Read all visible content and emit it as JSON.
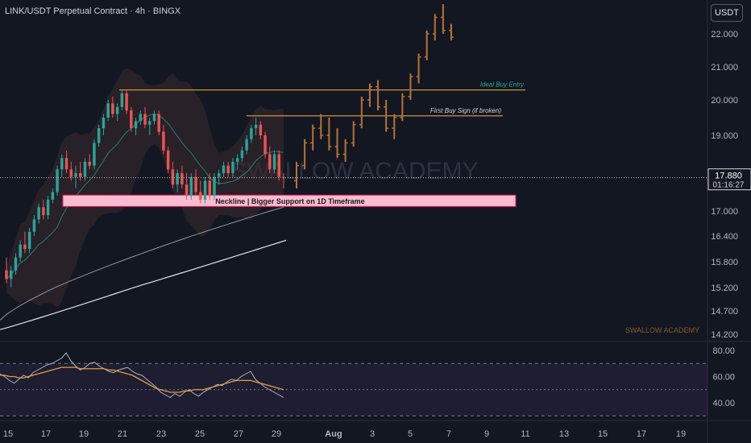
{
  "header": {
    "title": "LINK/USDT Perpetual Contract · 4h · BINGX",
    "currency_button": "USDT"
  },
  "price_tag": {
    "price": "17.880",
    "countdown": "01:16:27"
  },
  "watermarks": {
    "center": "SWALLOW ACADEMY",
    "corner": "SWALLOW ACADEMY"
  },
  "colors": {
    "background": "#131722",
    "up": "#26a69a",
    "down": "#ef5350",
    "projection": "#b87333",
    "level_line": "#e0a040",
    "zone_fill": "#f8bbd0",
    "rsi": "#b2b5be",
    "rsi_ma": "#e0a040"
  },
  "chart_data": [
    {
      "type": "candlestick",
      "title": "LINK/USDT Perpetual Contract · 4h · BINGX",
      "timeframe": "4h",
      "y_ticks": [
        "22.000",
        "21.000",
        "20.000",
        "19.000",
        "17.000",
        "16.400",
        "15.800",
        "15.200",
        "14.700",
        "14.200"
      ],
      "x_ticks": [
        "15",
        "17",
        "19",
        "21",
        "23",
        "25",
        "27",
        "29",
        "Aug",
        "3",
        "5",
        "7",
        "9",
        "11",
        "13",
        "15",
        "17",
        "19"
      ],
      "ylim": [
        14.2,
        22.0
      ],
      "last_price": 17.88,
      "candles": [
        {
          "o": 15.6,
          "h": 15.9,
          "l": 15.3,
          "c": 15.4
        },
        {
          "o": 15.4,
          "h": 15.7,
          "l": 15.2,
          "c": 15.6
        },
        {
          "o": 15.6,
          "h": 16.0,
          "l": 15.5,
          "c": 15.9
        },
        {
          "o": 15.9,
          "h": 16.3,
          "l": 15.8,
          "c": 16.2
        },
        {
          "o": 16.2,
          "h": 16.5,
          "l": 16.0,
          "c": 16.1
        },
        {
          "o": 16.1,
          "h": 16.6,
          "l": 16.0,
          "c": 16.5
        },
        {
          "o": 16.5,
          "h": 16.9,
          "l": 16.4,
          "c": 16.8
        },
        {
          "o": 16.8,
          "h": 17.2,
          "l": 16.7,
          "c": 17.1
        },
        {
          "o": 17.1,
          "h": 17.3,
          "l": 16.8,
          "c": 16.9
        },
        {
          "o": 16.9,
          "h": 17.4,
          "l": 16.8,
          "c": 17.3
        },
        {
          "o": 17.3,
          "h": 17.6,
          "l": 17.2,
          "c": 17.5
        },
        {
          "o": 17.5,
          "h": 18.2,
          "l": 17.4,
          "c": 18.1
        },
        {
          "o": 18.1,
          "h": 18.5,
          "l": 17.9,
          "c": 18.4
        },
        {
          "o": 18.4,
          "h": 18.6,
          "l": 18.0,
          "c": 18.1
        },
        {
          "o": 18.1,
          "h": 18.3,
          "l": 17.8,
          "c": 17.9
        },
        {
          "o": 17.9,
          "h": 18.2,
          "l": 17.6,
          "c": 18.0
        },
        {
          "o": 18.0,
          "h": 18.3,
          "l": 17.8,
          "c": 17.9
        },
        {
          "o": 17.9,
          "h": 18.4,
          "l": 17.8,
          "c": 18.3
        },
        {
          "o": 18.3,
          "h": 18.5,
          "l": 18.1,
          "c": 18.2
        },
        {
          "o": 18.2,
          "h": 18.9,
          "l": 18.1,
          "c": 18.8
        },
        {
          "o": 18.8,
          "h": 19.3,
          "l": 18.7,
          "c": 19.2
        },
        {
          "o": 19.2,
          "h": 19.6,
          "l": 19.0,
          "c": 19.5
        },
        {
          "o": 19.5,
          "h": 20.0,
          "l": 19.4,
          "c": 19.9
        },
        {
          "o": 19.9,
          "h": 20.1,
          "l": 19.5,
          "c": 19.6
        },
        {
          "o": 19.6,
          "h": 19.9,
          "l": 19.4,
          "c": 19.8
        },
        {
          "o": 19.8,
          "h": 20.3,
          "l": 19.7,
          "c": 20.2
        },
        {
          "o": 20.2,
          "h": 20.3,
          "l": 19.6,
          "c": 19.7
        },
        {
          "o": 19.7,
          "h": 19.8,
          "l": 19.1,
          "c": 19.2
        },
        {
          "o": 19.2,
          "h": 19.5,
          "l": 19.0,
          "c": 19.4
        },
        {
          "o": 19.4,
          "h": 19.7,
          "l": 19.3,
          "c": 19.6
        },
        {
          "o": 19.6,
          "h": 19.8,
          "l": 19.2,
          "c": 19.3
        },
        {
          "o": 19.3,
          "h": 19.5,
          "l": 19.0,
          "c": 19.4
        },
        {
          "o": 19.4,
          "h": 19.7,
          "l": 19.3,
          "c": 19.6
        },
        {
          "o": 19.6,
          "h": 19.7,
          "l": 19.0,
          "c": 19.1
        },
        {
          "o": 19.1,
          "h": 19.3,
          "l": 18.5,
          "c": 18.6
        },
        {
          "o": 18.6,
          "h": 18.7,
          "l": 18.0,
          "c": 18.1
        },
        {
          "o": 18.1,
          "h": 18.3,
          "l": 17.6,
          "c": 17.7
        },
        {
          "o": 17.7,
          "h": 18.1,
          "l": 17.5,
          "c": 18.0
        },
        {
          "o": 18.0,
          "h": 18.2,
          "l": 17.6,
          "c": 17.7
        },
        {
          "o": 17.7,
          "h": 18.0,
          "l": 17.3,
          "c": 17.4
        },
        {
          "o": 17.4,
          "h": 18.0,
          "l": 17.3,
          "c": 17.9
        },
        {
          "o": 17.9,
          "h": 18.1,
          "l": 17.4,
          "c": 17.5
        },
        {
          "o": 17.5,
          "h": 17.8,
          "l": 17.2,
          "c": 17.3
        },
        {
          "o": 17.3,
          "h": 17.9,
          "l": 17.2,
          "c": 17.8
        },
        {
          "o": 17.8,
          "h": 18.0,
          "l": 17.3,
          "c": 17.4
        },
        {
          "o": 17.4,
          "h": 18.0,
          "l": 17.3,
          "c": 17.9
        },
        {
          "o": 17.9,
          "h": 18.1,
          "l": 17.7,
          "c": 18.0
        },
        {
          "o": 18.0,
          "h": 18.3,
          "l": 17.9,
          "c": 18.2
        },
        {
          "o": 18.2,
          "h": 18.3,
          "l": 17.9,
          "c": 18.0
        },
        {
          "o": 18.0,
          "h": 18.4,
          "l": 17.9,
          "c": 18.3
        },
        {
          "o": 18.3,
          "h": 18.5,
          "l": 18.1,
          "c": 18.4
        },
        {
          "o": 18.4,
          "h": 18.7,
          "l": 18.3,
          "c": 18.6
        },
        {
          "o": 18.6,
          "h": 19.0,
          "l": 18.5,
          "c": 18.9
        },
        {
          "o": 18.9,
          "h": 19.3,
          "l": 18.8,
          "c": 19.2
        },
        {
          "o": 19.2,
          "h": 19.5,
          "l": 19.0,
          "c": 19.3
        },
        {
          "o": 19.3,
          "h": 19.4,
          "l": 18.9,
          "c": 19.0
        },
        {
          "o": 19.0,
          "h": 19.1,
          "l": 18.4,
          "c": 18.5
        },
        {
          "o": 18.5,
          "h": 18.7,
          "l": 18.0,
          "c": 18.1
        },
        {
          "o": 18.1,
          "h": 18.6,
          "l": 18.0,
          "c": 18.5
        },
        {
          "o": 18.5,
          "h": 18.6,
          "l": 17.8,
          "c": 17.9
        },
        {
          "o": 17.9,
          "h": 18.0,
          "l": 17.6,
          "c": 17.88
        }
      ],
      "projection": [
        {
          "o": 17.8,
          "h": 18.3,
          "l": 17.6,
          "c": 18.2
        },
        {
          "o": 18.2,
          "h": 18.9,
          "l": 18.1,
          "c": 18.8
        },
        {
          "o": 18.8,
          "h": 19.3,
          "l": 18.6,
          "c": 19.2
        },
        {
          "o": 19.2,
          "h": 19.6,
          "l": 18.9,
          "c": 19.0
        },
        {
          "o": 19.0,
          "h": 19.5,
          "l": 18.6,
          "c": 18.7
        },
        {
          "o": 18.7,
          "h": 19.2,
          "l": 18.4,
          "c": 18.5
        },
        {
          "o": 18.5,
          "h": 18.9,
          "l": 18.3,
          "c": 18.8
        },
        {
          "o": 18.8,
          "h": 19.4,
          "l": 18.7,
          "c": 19.3
        },
        {
          "o": 19.3,
          "h": 20.1,
          "l": 19.2,
          "c": 20.0
        },
        {
          "o": 20.0,
          "h": 20.5,
          "l": 19.8,
          "c": 20.4
        },
        {
          "o": 20.4,
          "h": 20.6,
          "l": 19.7,
          "c": 19.8
        },
        {
          "o": 19.8,
          "h": 20.0,
          "l": 19.1,
          "c": 19.2
        },
        {
          "o": 19.2,
          "h": 19.6,
          "l": 18.9,
          "c": 19.5
        },
        {
          "o": 19.5,
          "h": 20.2,
          "l": 19.4,
          "c": 20.1
        },
        {
          "o": 20.1,
          "h": 20.8,
          "l": 20.0,
          "c": 20.7
        },
        {
          "o": 20.7,
          "h": 21.4,
          "l": 20.5,
          "c": 21.3
        },
        {
          "o": 21.3,
          "h": 22.1,
          "l": 21.2,
          "c": 22.0
        },
        {
          "o": 22.0,
          "h": 22.6,
          "l": 21.8,
          "c": 22.5
        },
        {
          "o": 22.5,
          "h": 22.9,
          "l": 22.0,
          "c": 22.1
        },
        {
          "o": 22.1,
          "h": 22.3,
          "l": 21.8,
          "c": 21.9
        }
      ],
      "levels": [
        {
          "label": "Ideal Buy Entry",
          "price": 20.3
        },
        {
          "label": "First Buy Sign (if broken)",
          "price": 19.55
        }
      ],
      "zone": {
        "label": "Neckline | Bigger Support on 1D Timeframe",
        "top": 17.42,
        "bottom": 17.12
      }
    },
    {
      "type": "line",
      "panel": "oscillator",
      "y_ticks": [
        "80.00",
        "60.00",
        "40.00"
      ],
      "ylim": [
        30,
        80
      ],
      "bands": [
        70,
        50,
        30
      ],
      "series": [
        {
          "values": [
            62,
            60,
            57,
            55,
            58,
            61,
            59,
            63,
            65,
            67,
            69,
            70,
            72,
            74,
            78,
            72,
            68,
            65,
            67,
            70,
            71,
            68,
            66,
            64,
            63,
            65,
            66,
            67,
            64,
            62,
            61,
            58,
            55,
            52,
            48,
            46,
            44,
            47,
            45,
            48,
            50,
            47,
            45,
            48,
            50,
            52,
            54,
            53,
            56,
            58,
            57,
            60,
            62,
            64,
            58,
            55,
            52,
            50,
            48,
            46,
            44
          ]
        },
        {
          "values": [
            61,
            61,
            60,
            60,
            59,
            59,
            60,
            61,
            62,
            63,
            64,
            65,
            66,
            67,
            67,
            67,
            67,
            66,
            66,
            66,
            66,
            66,
            66,
            65,
            65,
            64,
            63,
            62,
            61,
            59,
            57,
            55,
            53,
            51,
            50,
            49,
            48,
            48,
            48,
            49,
            49,
            50,
            50,
            50,
            51,
            52,
            53,
            54,
            55,
            56,
            57,
            57,
            57,
            57,
            56,
            55,
            54,
            53,
            52,
            51,
            50
          ]
        }
      ]
    }
  ]
}
